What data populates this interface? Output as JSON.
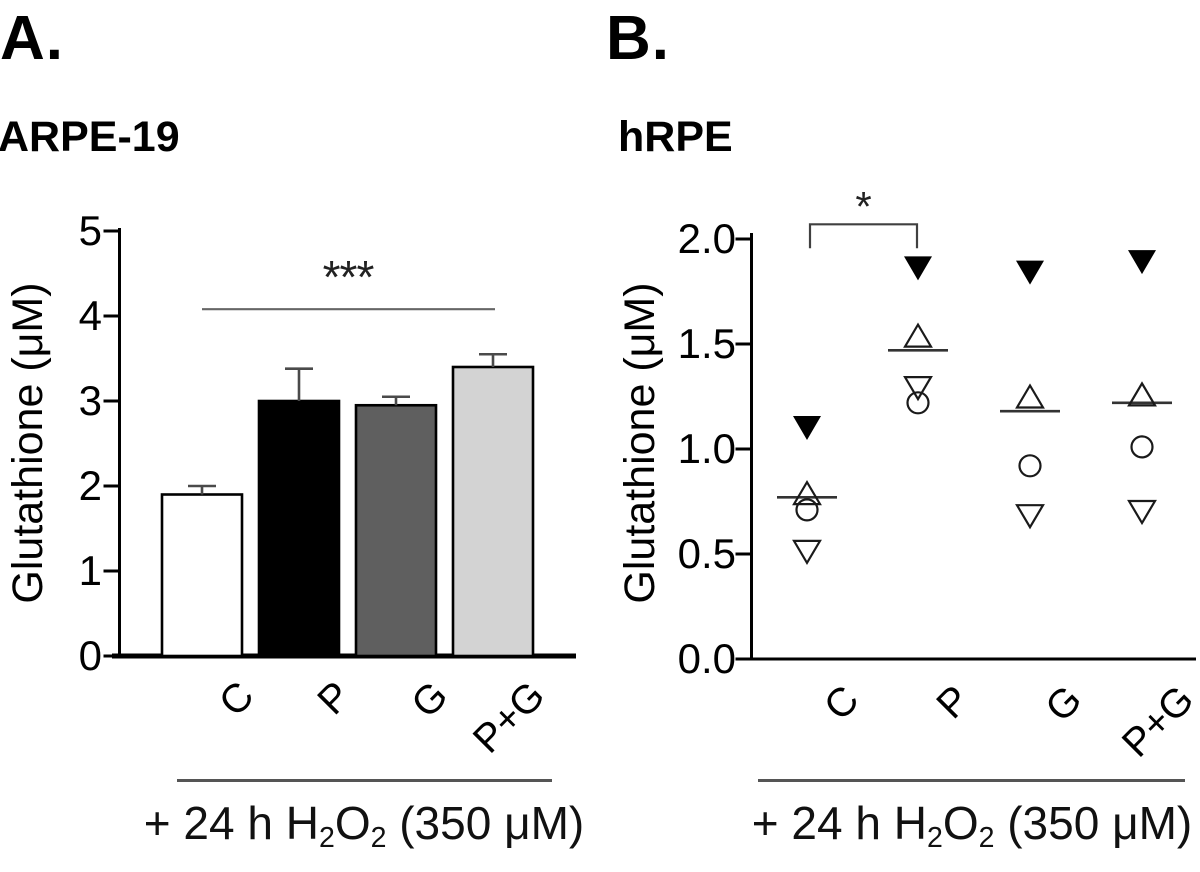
{
  "figure_title": "",
  "chart_data": [
    {
      "panel_label": "A.",
      "title": "ARPE-19",
      "type": "bar",
      "ylabel": "Glutathione (μM)",
      "xlabel_note": "+ 24 h H2O2 (350 μM)",
      "xlabel_segments": [
        {
          "t": "+ 24 h H"
        },
        {
          "t": "2",
          "sub": true
        },
        {
          "t": "O"
        },
        {
          "t": "2",
          "sub": true
        },
        {
          "t": " (350 μM)"
        }
      ],
      "categories": [
        "C",
        "P",
        "G",
        "P+G"
      ],
      "values": [
        1.9,
        3.0,
        2.95,
        3.4
      ],
      "error_top_values": [
        2.0,
        3.38,
        3.05,
        3.55
      ],
      "bar_fill_colors": [
        "#ffffff",
        "#000000",
        "#5f5f5f",
        "#d3d3d3"
      ],
      "bar_border_color": "#000000",
      "ylim": [
        0,
        5
      ],
      "yticks": [
        "0",
        "1",
        "2",
        "3",
        "4",
        "5"
      ],
      "grid": false,
      "legend": null,
      "significance": {
        "label": "***",
        "from_category": "C",
        "to_category": "P+G",
        "line_y_value": 4.08
      }
    },
    {
      "panel_label": "B.",
      "title": "hRPE",
      "type": "scatter",
      "ylabel": "Glutathione (μM)",
      "xlabel_note": "+ 24 h H2O2 (350 μM)",
      "xlabel_segments": [
        {
          "t": "+ 24 h H"
        },
        {
          "t": "2",
          "sub": true
        },
        {
          "t": "O"
        },
        {
          "t": "2",
          "sub": true
        },
        {
          "t": " (350 μM)"
        }
      ],
      "categories": [
        "C",
        "P",
        "G",
        "P+G"
      ],
      "series": [
        {
          "name": "replicate-filled-down-triangle",
          "marker": "triangle-down-filled",
          "values": [
            1.1,
            1.86,
            1.84,
            1.89
          ]
        },
        {
          "name": "replicate-open-up-triangle",
          "marker": "triangle-up-open",
          "values": [
            0.79,
            1.54,
            1.25,
            1.26
          ]
        },
        {
          "name": "replicate-open-circle",
          "marker": "circle-open",
          "values": [
            0.71,
            1.22,
            0.92,
            1.01
          ]
        },
        {
          "name": "replicate-open-down-triangle",
          "marker": "triangle-down-open",
          "values": [
            0.51,
            1.29,
            0.68,
            0.7
          ]
        }
      ],
      "means": [
        0.77,
        1.47,
        1.18,
        1.22
      ],
      "ylim": [
        0.0,
        2.0
      ],
      "yticks": [
        "0.0",
        "0.5",
        "1.0",
        "1.5",
        "2.0"
      ],
      "grid": false,
      "legend": null,
      "significance": {
        "label": "*",
        "from_category": "C",
        "to_category": "P",
        "bracket_y_value": 2.07
      }
    }
  ]
}
